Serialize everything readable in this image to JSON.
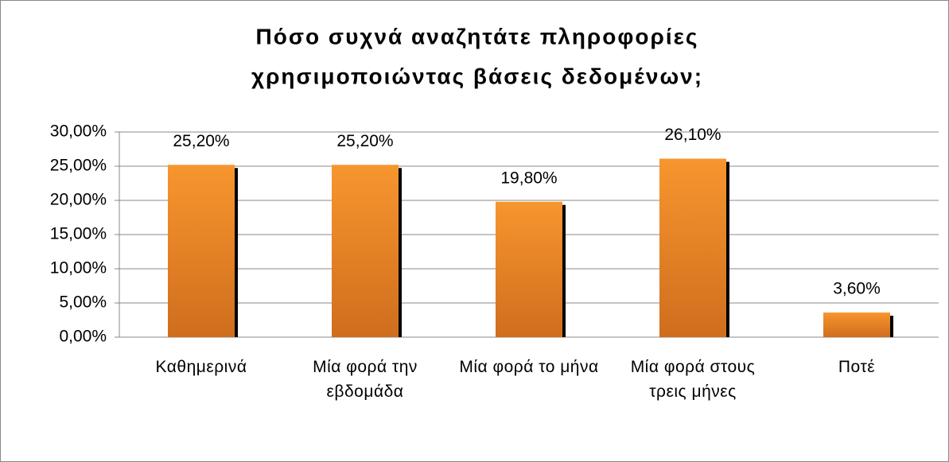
{
  "chart_data": {
    "type": "bar",
    "title": [
      "Πόσο συχνά αναζητάτε πληροφορίες",
      "χρησιμοποιώντας βάσεις δεδομένων;"
    ],
    "categories": [
      "Καθημερινά",
      "Μία φορά την εβδομάδα",
      "Μία φορά το μήνα",
      "Μία φορά στους τρεις μήνες",
      "Ποτέ"
    ],
    "values": [
      25.2,
      25.2,
      19.8,
      26.1,
      3.6
    ],
    "value_labels": [
      "25,20%",
      "25,20%",
      "19,80%",
      "26,10%",
      "3,60%"
    ],
    "color": "#f7962e",
    "ylim": [
      0,
      30
    ],
    "yticks": [
      {
        "value": 0,
        "label": "0,00%"
      },
      {
        "value": 5,
        "label": "5,00%"
      },
      {
        "value": 10,
        "label": "10,00%"
      },
      {
        "value": 15,
        "label": "15,00%"
      },
      {
        "value": 20,
        "label": "20,00%"
      },
      {
        "value": 25,
        "label": "25,00%"
      },
      {
        "value": 30,
        "label": "30,00%"
      }
    ],
    "grid": true
  }
}
